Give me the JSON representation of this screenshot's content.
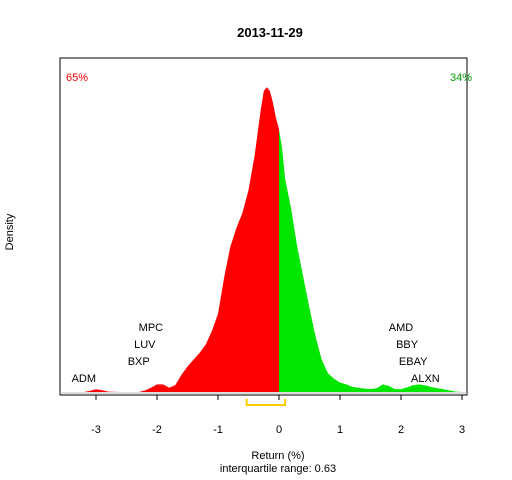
{
  "chart_data": {
    "type": "area",
    "title": "2013-11-29",
    "xlabel": "Return (%)",
    "ylabel": "Density",
    "subtitle": "interquartile range: 0.63",
    "xlim": [
      -3.55,
      3.0
    ],
    "ylim": [
      0,
      0.84
    ],
    "xticks": [
      -3,
      -2,
      -1,
      0,
      1,
      2,
      3
    ],
    "split_at": 0,
    "percent_negative": "65%",
    "percent_positive": "34%",
    "colors": {
      "negative": "#ff0000",
      "positive": "#00e600",
      "iqr": "#ffcc00",
      "pct_neg": "#ff0000",
      "pct_pos": "#009900"
    },
    "density": [
      [
        -3.2,
        0.0
      ],
      [
        -3.1,
        0.003
      ],
      [
        -3.0,
        0.007
      ],
      [
        -2.9,
        0.005
      ],
      [
        -2.8,
        0.001
      ],
      [
        -2.6,
        0.0
      ],
      [
        -2.3,
        0.0
      ],
      [
        -2.2,
        0.004
      ],
      [
        -2.1,
        0.011
      ],
      [
        -2.0,
        0.02
      ],
      [
        -1.9,
        0.02
      ],
      [
        -1.8,
        0.011
      ],
      [
        -1.7,
        0.018
      ],
      [
        -1.6,
        0.045
      ],
      [
        -1.5,
        0.067
      ],
      [
        -1.4,
        0.085
      ],
      [
        -1.3,
        0.103
      ],
      [
        -1.2,
        0.125
      ],
      [
        -1.1,
        0.16
      ],
      [
        -1.0,
        0.205
      ],
      [
        -0.9,
        0.3
      ],
      [
        -0.8,
        0.38
      ],
      [
        -0.7,
        0.43
      ],
      [
        -0.6,
        0.47
      ],
      [
        -0.5,
        0.53
      ],
      [
        -0.4,
        0.62
      ],
      [
        -0.35,
        0.68
      ],
      [
        -0.3,
        0.74
      ],
      [
        -0.25,
        0.79
      ],
      [
        -0.2,
        0.8
      ],
      [
        -0.15,
        0.79
      ],
      [
        -0.1,
        0.76
      ],
      [
        -0.05,
        0.72
      ],
      [
        0.0,
        0.69
      ],
      [
        0.05,
        0.64
      ],
      [
        0.1,
        0.56
      ],
      [
        0.2,
        0.48
      ],
      [
        0.3,
        0.38
      ],
      [
        0.4,
        0.3
      ],
      [
        0.5,
        0.22
      ],
      [
        0.6,
        0.145
      ],
      [
        0.7,
        0.085
      ],
      [
        0.8,
        0.05
      ],
      [
        0.9,
        0.035
      ],
      [
        1.0,
        0.025
      ],
      [
        1.1,
        0.02
      ],
      [
        1.2,
        0.014
      ],
      [
        1.3,
        0.011
      ],
      [
        1.4,
        0.009
      ],
      [
        1.5,
        0.008
      ],
      [
        1.6,
        0.01
      ],
      [
        1.7,
        0.02
      ],
      [
        1.8,
        0.016
      ],
      [
        1.9,
        0.008
      ],
      [
        2.0,
        0.007
      ],
      [
        2.1,
        0.012
      ],
      [
        2.2,
        0.018
      ],
      [
        2.3,
        0.02
      ],
      [
        2.4,
        0.017
      ],
      [
        2.5,
        0.013
      ],
      [
        2.6,
        0.01
      ],
      [
        2.7,
        0.007
      ],
      [
        2.8,
        0.004
      ],
      [
        2.9,
        0.001
      ],
      [
        3.0,
        0.0
      ]
    ],
    "annotations": [
      {
        "label": "ADM",
        "x": -3.2,
        "row": 0,
        "side": "left"
      },
      {
        "label": "BXP",
        "x": -2.3,
        "row": 1,
        "side": "left"
      },
      {
        "label": "LUV",
        "x": -2.2,
        "row": 2,
        "side": "left"
      },
      {
        "label": "MPC",
        "x": -2.1,
        "row": 3,
        "side": "left"
      },
      {
        "label": "ALXN",
        "x": 2.4,
        "row": 0,
        "side": "right"
      },
      {
        "label": "EBAY",
        "x": 2.2,
        "row": 1,
        "side": "right"
      },
      {
        "label": "BBY",
        "x": 2.1,
        "row": 2,
        "side": "right"
      },
      {
        "label": "AMD",
        "x": 2.0,
        "row": 3,
        "side": "right"
      }
    ],
    "iqr": {
      "q1": -0.53,
      "q3": 0.1
    }
  }
}
